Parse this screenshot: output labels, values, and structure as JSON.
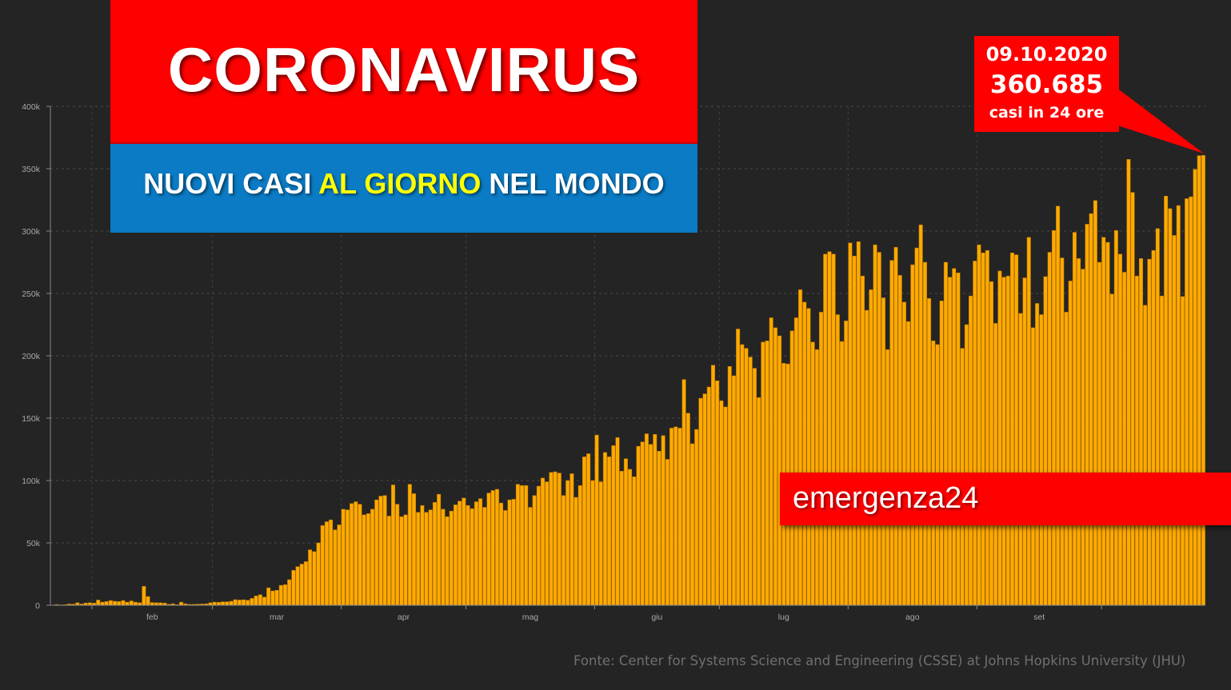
{
  "header": {
    "title": "CORONAVIRUS",
    "subtitle_part1": "NUOVI CASI ",
    "subtitle_highlight": "AL GIORNO",
    "subtitle_part2": " NEL MONDO"
  },
  "callout": {
    "date": "09.10.2020",
    "value": "360.685",
    "note": "casi in 24 ore"
  },
  "brand": "emergenza24",
  "source": "Fonte: Center for Systems Science and Engineering (CSSE) at Johns Hopkins University (JHU)",
  "colors": {
    "background": "#242424",
    "bar": "#ffaa00",
    "title_box": "#ff0000",
    "subtitle_box": "#0a7bc4",
    "highlight": "#ffff00"
  },
  "chart_data": {
    "type": "bar",
    "y_tick_labels": [
      "0",
      "50k",
      "100k",
      "150k",
      "200k",
      "250k",
      "300k",
      "350k",
      "400k"
    ],
    "x_tick_labels": [
      "feb",
      "mar",
      "apr",
      "mag",
      "giu",
      "lug",
      "ago",
      "set"
    ],
    "ylim": [
      0,
      400000
    ],
    "x_start": "2020-01-22",
    "x_end": "2020-10-09",
    "grid": true,
    "values": [
      0,
      600,
      300,
      500,
      1000,
      900,
      2000,
      1000,
      1800,
      2000,
      1700,
      4200,
      2500,
      3000,
      3800,
      3200,
      3000,
      3800,
      2500,
      3500,
      2500,
      2000,
      15200,
      7000,
      2200,
      2000,
      2000,
      1800,
      800,
      1200,
      500,
      2500,
      1200,
      700,
      800,
      900,
      1000,
      1200,
      2000,
      2500,
      2400,
      2800,
      2800,
      3200,
      4500,
      4200,
      4400,
      4000,
      5500,
      7500,
      8500,
      6500,
      14000,
      11500,
      12000,
      16000,
      16500,
      20500,
      28000,
      31000,
      33000,
      35000,
      44500,
      43000,
      50000,
      64000,
      67000,
      68500,
      60500,
      64500,
      77000,
      76500,
      81500,
      83000,
      81000,
      72500,
      73500,
      77000,
      84500,
      87500,
      88000,
      71500,
      96500,
      81000,
      71000,
      72500,
      97000,
      89500,
      74500,
      80000,
      74500,
      76500,
      82500,
      89000,
      77000,
      71000,
      75500,
      80500,
      83500,
      86000,
      80000,
      77500,
      83000,
      85500,
      78500,
      90000,
      92000,
      93000,
      82000,
      76000,
      84500,
      85000,
      97000,
      96000,
      96000,
      78500,
      88000,
      95500,
      102000,
      99000,
      106500,
      107000,
      106000,
      88000,
      100000,
      105500,
      86500,
      96000,
      119000,
      121500,
      100000,
      136500,
      99000,
      122500,
      119000,
      128000,
      134500,
      107500,
      117500,
      109000,
      103000,
      127500,
      131000,
      137500,
      129000,
      137000,
      123500,
      136000,
      117000,
      142000,
      143000,
      142000,
      181000,
      154000,
      129500,
      141000,
      166000,
      169500,
      175000,
      192500,
      180000,
      164000,
      159000,
      191500,
      184000,
      221500,
      209000,
      206000,
      199000,
      190000,
      166500,
      211000,
      212000,
      230500,
      222500,
      216000,
      194000,
      193500,
      220000,
      230500,
      253000,
      243000,
      238000,
      211000,
      205000,
      235000,
      281500,
      283500,
      281500,
      233000,
      211500,
      228000,
      290500,
      280000,
      291500,
      264000,
      236500,
      253000,
      289000,
      283000,
      246500,
      205000,
      276500,
      287000,
      264500,
      243000,
      227500,
      273000,
      286500,
      305000,
      275000,
      246000,
      212000,
      209000,
      244000,
      275000,
      263000,
      270000,
      266500,
      206000,
      225000,
      248000,
      276000,
      289000,
      282500,
      284500,
      259500,
      226000,
      268000,
      263000,
      264000,
      282500,
      281000,
      234000,
      262500,
      295000,
      222500,
      242000,
      233000,
      263500,
      283000,
      300500,
      320000,
      278500,
      235000,
      260000,
      299000,
      278000,
      269500,
      305500,
      314000,
      324500,
      275000,
      295000,
      291000,
      249500,
      300500,
      281500,
      267000,
      357500,
      331000,
      264000,
      278000,
      240500,
      277500,
      284500,
      302000,
      248000,
      328000,
      318000,
      296500,
      320500,
      247500,
      326000,
      327500,
      349500,
      360500,
      360685
    ]
  }
}
